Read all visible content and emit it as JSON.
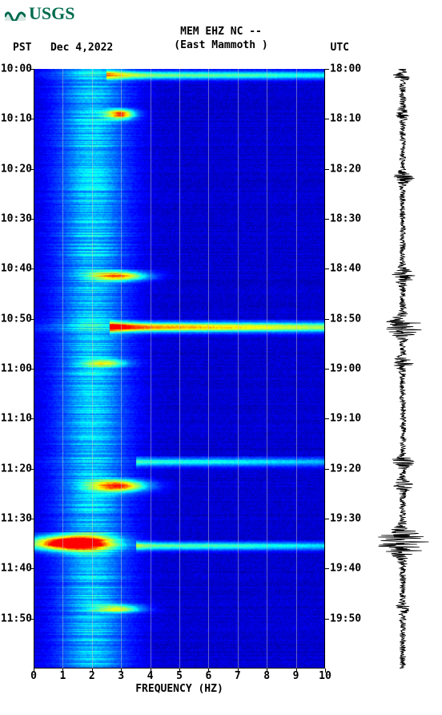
{
  "logo": {
    "text": "USGS",
    "color": "#006c4f"
  },
  "header": {
    "line1": "MEM EHZ NC --",
    "line2": "(East Mammoth )",
    "tz_left_label": "PST",
    "date": "Dec 4,2022",
    "tz_right_label": "UTC"
  },
  "spectrogram": {
    "type": "spectrogram",
    "x_axis": {
      "label": "FREQUENCY (HZ)",
      "min": 0,
      "max": 10,
      "ticks": [
        0,
        1,
        2,
        3,
        4,
        5,
        6,
        7,
        8,
        9,
        10
      ]
    },
    "y_axis_left": {
      "ticks": [
        {
          "t": 0.0,
          "label": "10:00"
        },
        {
          "t": 0.083,
          "label": "10:10"
        },
        {
          "t": 0.167,
          "label": "10:20"
        },
        {
          "t": 0.25,
          "label": "10:30"
        },
        {
          "t": 0.333,
          "label": "10:40"
        },
        {
          "t": 0.417,
          "label": "10:50"
        },
        {
          "t": 0.5,
          "label": "11:00"
        },
        {
          "t": 0.583,
          "label": "11:10"
        },
        {
          "t": 0.667,
          "label": "11:20"
        },
        {
          "t": 0.75,
          "label": "11:30"
        },
        {
          "t": 0.833,
          "label": "11:40"
        },
        {
          "t": 0.917,
          "label": "11:50"
        }
      ]
    },
    "y_axis_right": {
      "ticks": [
        {
          "t": 0.0,
          "label": "18:00"
        },
        {
          "t": 0.083,
          "label": "18:10"
        },
        {
          "t": 0.167,
          "label": "18:20"
        },
        {
          "t": 0.25,
          "label": "18:30"
        },
        {
          "t": 0.333,
          "label": "18:40"
        },
        {
          "t": 0.417,
          "label": "18:50"
        },
        {
          "t": 0.5,
          "label": "19:00"
        },
        {
          "t": 0.583,
          "label": "19:10"
        },
        {
          "t": 0.667,
          "label": "19:20"
        },
        {
          "t": 0.75,
          "label": "19:30"
        },
        {
          "t": 0.833,
          "label": "19:40"
        },
        {
          "t": 0.917,
          "label": "19:50"
        }
      ]
    },
    "colormap": {
      "stops": [
        {
          "v": 0.0,
          "c": "#00007f"
        },
        {
          "v": 0.15,
          "c": "#0000ff"
        },
        {
          "v": 0.35,
          "c": "#007fff"
        },
        {
          "v": 0.5,
          "c": "#00ffff"
        },
        {
          "v": 0.65,
          "c": "#7fff7f"
        },
        {
          "v": 0.8,
          "c": "#ffff00"
        },
        {
          "v": 0.9,
          "c": "#ff7f00"
        },
        {
          "v": 1.0,
          "c": "#ff0000"
        }
      ]
    },
    "background_band": {
      "freq_center": 2.0,
      "freq_width": 1.2,
      "intensity": 0.35
    },
    "noise_level": 0.1,
    "events": [
      {
        "t": 0.01,
        "f0": 3.0,
        "fw": 7.0,
        "amp": 0.55,
        "dur": 0.01
      },
      {
        "t": 0.075,
        "f0": 3.0,
        "fw": 0.5,
        "amp": 0.7,
        "dur": 0.012
      },
      {
        "t": 0.345,
        "f0": 3.0,
        "fw": 1.0,
        "amp": 0.65,
        "dur": 0.012
      },
      {
        "t": 0.43,
        "f0": 3.1,
        "fw": 7.0,
        "amp": 0.8,
        "dur": 0.012
      },
      {
        "t": 0.49,
        "f0": 2.5,
        "fw": 0.8,
        "amp": 0.4,
        "dur": 0.01
      },
      {
        "t": 0.655,
        "f0": 4.0,
        "fw": 6.0,
        "amp": 0.45,
        "dur": 0.01
      },
      {
        "t": 0.695,
        "f0": 3.0,
        "fw": 1.0,
        "amp": 0.7,
        "dur": 0.015
      },
      {
        "t": 0.79,
        "f0": 1.2,
        "fw": 1.5,
        "amp": 0.95,
        "dur": 0.018
      },
      {
        "t": 0.795,
        "f0": 4.0,
        "fw": 6.0,
        "amp": 0.5,
        "dur": 0.01
      },
      {
        "t": 0.9,
        "f0": 3.0,
        "fw": 0.8,
        "amp": 0.5,
        "dur": 0.01
      }
    ]
  },
  "seismogram": {
    "color": "#000000",
    "baseline_amp": 0.12,
    "spikes": [
      {
        "t": 0.01,
        "amp": 0.25,
        "dur": 0.01
      },
      {
        "t": 0.075,
        "amp": 0.2,
        "dur": 0.01
      },
      {
        "t": 0.18,
        "amp": 0.4,
        "dur": 0.01
      },
      {
        "t": 0.345,
        "amp": 0.35,
        "dur": 0.015
      },
      {
        "t": 0.43,
        "amp": 0.65,
        "dur": 0.02
      },
      {
        "t": 0.49,
        "amp": 0.3,
        "dur": 0.012
      },
      {
        "t": 0.655,
        "amp": 0.35,
        "dur": 0.012
      },
      {
        "t": 0.695,
        "amp": 0.3,
        "dur": 0.012
      },
      {
        "t": 0.79,
        "amp": 1.0,
        "dur": 0.025
      },
      {
        "t": 0.9,
        "amp": 0.2,
        "dur": 0.01
      }
    ]
  },
  "footnote": ""
}
